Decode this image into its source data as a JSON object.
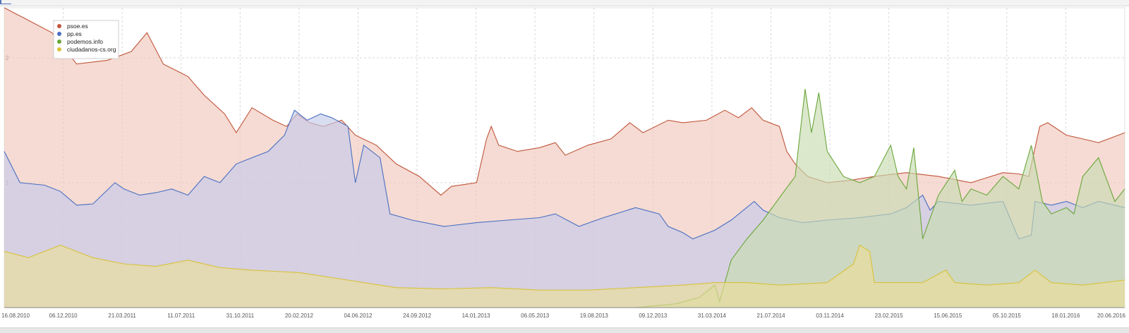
{
  "colors": {
    "background": "#ffffff",
    "grid": "#d8d8d8",
    "axis": "#888888"
  },
  "chart_data": {
    "type": "area",
    "title": "",
    "xlabel": "",
    "ylabel": "",
    "ylim": [
      0,
      2.4
    ],
    "y_ticks": [
      "0",
      "1",
      "2"
    ],
    "x_tick_labels": [
      "16.08.2010",
      "06.12.2010",
      "21.03.2011",
      "11.07.2011",
      "31.10.2011",
      "20.02.2012",
      "04.06.2012",
      "24.09.2012",
      "14.01.2013",
      "06.05.2013",
      "19.08.2013",
      "09.12.2013",
      "31.03.2014",
      "21.07.2014",
      "03.11.2014",
      "23.02.2015",
      "15.06.2015",
      "05.10.2015",
      "18.01.2016",
      "20.06.2016"
    ],
    "grid": true,
    "legend_position": "top-left",
    "x_range": [
      "16.08.2010",
      "20.06.2016"
    ],
    "series": [
      {
        "name": "psoe.es",
        "color": "#c0553a",
        "fill": "#f0c8bc",
        "points": [
          [
            "16.08.2010",
            2.4
          ],
          [
            "01.10.2010",
            2.3
          ],
          [
            "15.11.2010",
            2.2
          ],
          [
            "01.01.2011",
            1.95
          ],
          [
            "01.03.2011",
            1.98
          ],
          [
            "15.04.2011",
            2.05
          ],
          [
            "15.05.2011",
            2.2
          ],
          [
            "15.06.2011",
            1.95
          ],
          [
            "01.08.2011",
            1.85
          ],
          [
            "01.09.2011",
            1.7
          ],
          [
            "10.10.2011",
            1.55
          ],
          [
            "01.11.2011",
            1.4
          ],
          [
            "01.12.2011",
            1.6
          ],
          [
            "10.01.2012",
            1.5
          ],
          [
            "05.02.2012",
            1.45
          ],
          [
            "25.02.2012",
            1.55
          ],
          [
            "20.03.2012",
            1.48
          ],
          [
            "15.04.2012",
            1.45
          ],
          [
            "20.05.2012",
            1.5
          ],
          [
            "15.06.2012",
            1.38
          ],
          [
            "25.07.2012",
            1.3
          ],
          [
            "01.09.2012",
            1.15
          ],
          [
            "15.10.2012",
            1.05
          ],
          [
            "25.11.2012",
            0.9
          ],
          [
            "15.12.2012",
            0.97
          ],
          [
            "01.02.2013",
            1.0
          ],
          [
            "20.02.2013",
            1.35
          ],
          [
            "01.03.2013",
            1.45
          ],
          [
            "15.03.2013",
            1.3
          ],
          [
            "20.04.2013",
            1.25
          ],
          [
            "01.06.2013",
            1.28
          ],
          [
            "01.07.2013",
            1.32
          ],
          [
            "20.07.2013",
            1.22
          ],
          [
            "01.09.2013",
            1.3
          ],
          [
            "15.10.2013",
            1.35
          ],
          [
            "20.11.2013",
            1.48
          ],
          [
            "15.12.2013",
            1.4
          ],
          [
            "01.02.2014",
            1.5
          ],
          [
            "01.03.2014",
            1.48
          ],
          [
            "15.04.2014",
            1.5
          ],
          [
            "20.05.2014",
            1.58
          ],
          [
            "15.06.2014",
            1.52
          ],
          [
            "10.07.2014",
            1.6
          ],
          [
            "01.08.2014",
            1.5
          ],
          [
            "01.09.2014",
            1.45
          ],
          [
            "15.09.2014",
            1.25
          ],
          [
            "01.10.2014",
            1.15
          ],
          [
            "25.10.2014",
            1.05
          ],
          [
            "01.12.2014",
            1.0
          ],
          [
            "15.01.2015",
            1.02
          ],
          [
            "01.03.2015",
            1.05
          ],
          [
            "01.05.2015",
            1.08
          ],
          [
            "01.07.2015",
            1.05
          ],
          [
            "01.09.2015",
            1.0
          ],
          [
            "01.11.2015",
            1.08
          ],
          [
            "01.12.2015",
            1.07
          ],
          [
            "20.12.2015",
            1.05
          ],
          [
            "10.01.2016",
            1.45
          ],
          [
            "25.01.2016",
            1.48
          ],
          [
            "01.03.2016",
            1.38
          ],
          [
            "01.04.2016",
            1.35
          ],
          [
            "01.05.2016",
            1.32
          ],
          [
            "20.06.2016",
            1.4
          ]
        ]
      },
      {
        "name": "pp.es",
        "color": "#4a6ec2",
        "fill": "#c5cbea",
        "points": [
          [
            "16.08.2010",
            1.25
          ],
          [
            "15.09.2010",
            1.0
          ],
          [
            "01.11.2010",
            0.98
          ],
          [
            "01.12.2010",
            0.93
          ],
          [
            "01.01.2011",
            0.82
          ],
          [
            "01.02.2011",
            0.83
          ],
          [
            "15.03.2011",
            1.0
          ],
          [
            "01.04.2011",
            0.95
          ],
          [
            "01.05.2011",
            0.9
          ],
          [
            "01.06.2011",
            0.92
          ],
          [
            "01.07.2011",
            0.95
          ],
          [
            "01.08.2011",
            0.9
          ],
          [
            "01.09.2011",
            1.05
          ],
          [
            "01.10.2011",
            1.0
          ],
          [
            "01.11.2011",
            1.15
          ],
          [
            "01.12.2011",
            1.2
          ],
          [
            "01.01.2012",
            1.25
          ],
          [
            "01.02.2012",
            1.38
          ],
          [
            "20.02.2012",
            1.58
          ],
          [
            "15.03.2012",
            1.5
          ],
          [
            "10.04.2012",
            1.55
          ],
          [
            "01.05.2012",
            1.52
          ],
          [
            "01.06.2012",
            1.45
          ],
          [
            "15.06.2012",
            1.0
          ],
          [
            "01.07.2012",
            1.3
          ],
          [
            "01.08.2012",
            1.2
          ],
          [
            "20.08.2012",
            0.75
          ],
          [
            "01.10.2012",
            0.7
          ],
          [
            "01.12.2012",
            0.65
          ],
          [
            "01.02.2013",
            0.68
          ],
          [
            "01.04.2013",
            0.7
          ],
          [
            "01.06.2013",
            0.72
          ],
          [
            "01.07.2013",
            0.75
          ],
          [
            "15.08.2013",
            0.65
          ],
          [
            "01.10.2013",
            0.72
          ],
          [
            "01.12.2013",
            0.8
          ],
          [
            "15.01.2014",
            0.75
          ],
          [
            "01.02.2014",
            0.65
          ],
          [
            "01.03.2014",
            0.6
          ],
          [
            "20.03.2014",
            0.55
          ],
          [
            "01.05.2014",
            0.62
          ],
          [
            "01.06.2014",
            0.7
          ],
          [
            "15.07.2014",
            0.85
          ],
          [
            "01.08.2014",
            0.78
          ],
          [
            "01.09.2014",
            0.72
          ],
          [
            "15.10.2014",
            0.68
          ],
          [
            "01.12.2014",
            0.7
          ],
          [
            "01.02.2015",
            0.72
          ],
          [
            "01.04.2015",
            0.75
          ],
          [
            "01.05.2015",
            0.8
          ],
          [
            "01.06.2015",
            0.9
          ],
          [
            "15.06.2015",
            0.78
          ],
          [
            "01.07.2015",
            0.85
          ],
          [
            "01.09.2015",
            0.82
          ],
          [
            "01.11.2015",
            0.85
          ],
          [
            "01.12.2015",
            0.55
          ],
          [
            "25.12.2015",
            0.58
          ],
          [
            "01.01.2016",
            0.85
          ],
          [
            "01.02.2016",
            0.82
          ],
          [
            "01.03.2016",
            0.85
          ],
          [
            "01.04.2016",
            0.8
          ],
          [
            "01.05.2016",
            0.85
          ],
          [
            "20.06.2016",
            0.8
          ]
        ]
      },
      {
        "name": "podemos.info",
        "color": "#6aa63a",
        "fill": "#c8dcb0",
        "points": [
          [
            "16.08.2010",
            0.0
          ],
          [
            "01.12.2013",
            0.0
          ],
          [
            "15.02.2014",
            0.03
          ],
          [
            "01.04.2014",
            0.08
          ],
          [
            "01.05.2014",
            0.18
          ],
          [
            "10.05.2014",
            0.05
          ],
          [
            "01.06.2014",
            0.38
          ],
          [
            "01.07.2014",
            0.55
          ],
          [
            "01.08.2014",
            0.7
          ],
          [
            "01.09.2014",
            0.88
          ],
          [
            "01.10.2014",
            1.05
          ],
          [
            "20.10.2014",
            1.75
          ],
          [
            "01.11.2014",
            1.4
          ],
          [
            "15.11.2014",
            1.72
          ],
          [
            "01.12.2014",
            1.25
          ],
          [
            "01.01.2015",
            1.05
          ],
          [
            "01.02.2015",
            1.0
          ],
          [
            "01.03.2015",
            1.05
          ],
          [
            "01.04.2015",
            1.3
          ],
          [
            "15.04.2015",
            1.05
          ],
          [
            "01.05.2015",
            0.95
          ],
          [
            "15.05.2015",
            1.28
          ],
          [
            "01.06.2015",
            0.55
          ],
          [
            "01.07.2015",
            0.9
          ],
          [
            "01.08.2015",
            1.1
          ],
          [
            "15.08.2015",
            0.85
          ],
          [
            "01.09.2015",
            0.95
          ],
          [
            "01.10.2015",
            0.9
          ],
          [
            "01.11.2015",
            1.05
          ],
          [
            "01.12.2015",
            0.95
          ],
          [
            "25.12.2015",
            1.3
          ],
          [
            "15.01.2016",
            0.85
          ],
          [
            "01.02.2016",
            0.75
          ],
          [
            "01.03.2016",
            0.8
          ],
          [
            "15.03.2016",
            0.75
          ],
          [
            "01.04.2016",
            1.05
          ],
          [
            "01.05.2016",
            1.2
          ],
          [
            "01.06.2016",
            0.85
          ],
          [
            "20.06.2016",
            0.95
          ]
        ]
      },
      {
        "name": "ciudadanos-cs.org",
        "color": "#d8c23a",
        "fill": "#e9dd98",
        "points": [
          [
            "16.08.2010",
            0.45
          ],
          [
            "01.10.2010",
            0.4
          ],
          [
            "01.12.2010",
            0.5
          ],
          [
            "01.02.2011",
            0.4
          ],
          [
            "01.04.2011",
            0.35
          ],
          [
            "01.06.2011",
            0.33
          ],
          [
            "01.08.2011",
            0.38
          ],
          [
            "01.10.2011",
            0.32
          ],
          [
            "01.12.2011",
            0.3
          ],
          [
            "01.03.2012",
            0.28
          ],
          [
            "01.06.2012",
            0.22
          ],
          [
            "01.09.2012",
            0.16
          ],
          [
            "01.12.2012",
            0.15
          ],
          [
            "01.03.2013",
            0.16
          ],
          [
            "01.06.2013",
            0.14
          ],
          [
            "01.09.2013",
            0.14
          ],
          [
            "01.12.2013",
            0.16
          ],
          [
            "01.03.2014",
            0.18
          ],
          [
            "01.05.2014",
            0.2
          ],
          [
            "01.07.2014",
            0.2
          ],
          [
            "01.09.2014",
            0.18
          ],
          [
            "01.12.2014",
            0.2
          ],
          [
            "20.01.2015",
            0.35
          ],
          [
            "01.02.2015",
            0.5
          ],
          [
            "20.02.2015",
            0.45
          ],
          [
            "01.03.2015",
            0.2
          ],
          [
            "01.06.2015",
            0.2
          ],
          [
            "15.07.2015",
            0.3
          ],
          [
            "01.08.2015",
            0.2
          ],
          [
            "01.10.2015",
            0.18
          ],
          [
            "01.12.2015",
            0.2
          ],
          [
            "01.01.2016",
            0.3
          ],
          [
            "01.02.2016",
            0.2
          ],
          [
            "01.04.2016",
            0.18
          ],
          [
            "20.06.2016",
            0.22
          ]
        ]
      }
    ]
  }
}
